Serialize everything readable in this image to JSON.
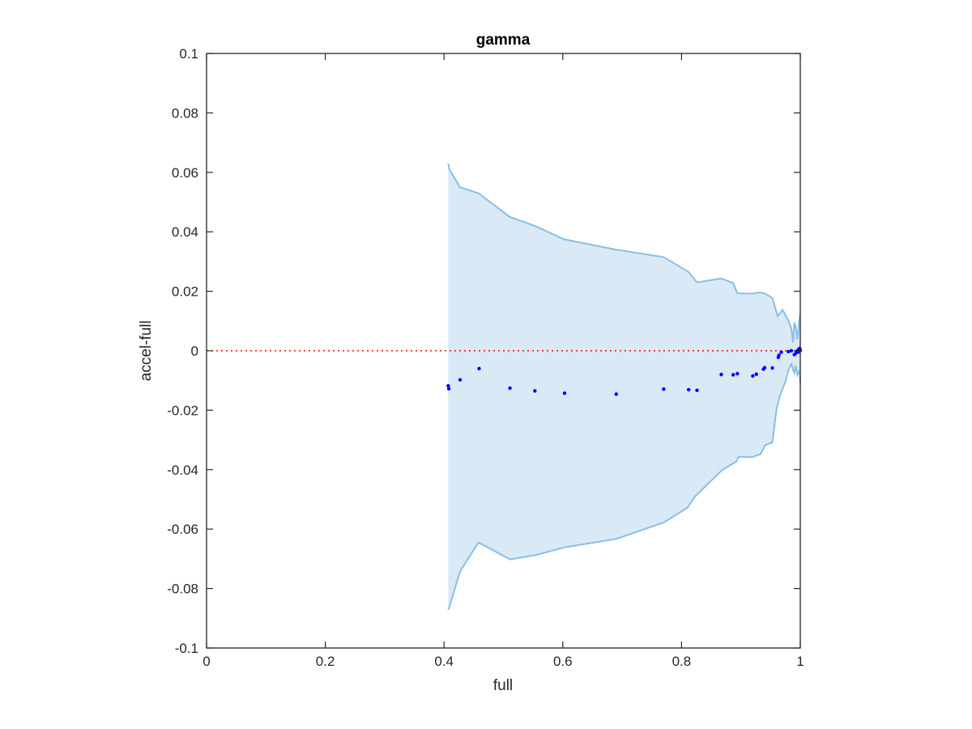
{
  "chart_data": {
    "type": "scatter",
    "title": "gamma",
    "xlabel": "full",
    "ylabel": "accel-full",
    "xlim": [
      0,
      1
    ],
    "ylim": [
      -0.1,
      0.1
    ],
    "xticks": [
      0,
      0.2,
      0.4,
      0.6,
      0.8,
      1
    ],
    "xtick_labels": [
      "0",
      "0.2",
      "0.4",
      "0.6",
      "0.8",
      "1"
    ],
    "yticks": [
      -0.1,
      -0.08,
      -0.06,
      -0.04,
      -0.02,
      0,
      0.02,
      0.04,
      0.06,
      0.08,
      0.1
    ],
    "ytick_labels": [
      "-0.1",
      "-0.08",
      "-0.06",
      "-0.04",
      "-0.02",
      "0",
      "0.02",
      "0.04",
      "0.06",
      "0.08",
      "0.1"
    ],
    "grid": false,
    "reference_line": {
      "y": 0,
      "color": "#ff0000",
      "style": "dotted"
    },
    "band": {
      "fill_color": "#d9e9f5",
      "edge_color": "#88c0e4",
      "upper": [
        [
          0.407,
          0.063
        ],
        [
          0.409,
          0.061
        ],
        [
          0.427,
          0.055
        ],
        [
          0.458,
          0.053
        ],
        [
          0.511,
          0.045
        ],
        [
          0.553,
          0.042
        ],
        [
          0.602,
          0.0375
        ],
        [
          0.69,
          0.034
        ],
        [
          0.77,
          0.0315
        ],
        [
          0.812,
          0.0265
        ],
        [
          0.826,
          0.023
        ],
        [
          0.867,
          0.0243
        ],
        [
          0.887,
          0.0228
        ],
        [
          0.894,
          0.0193
        ],
        [
          0.92,
          0.0192
        ],
        [
          0.93,
          0.0196
        ],
        [
          0.94,
          0.0193
        ],
        [
          0.953,
          0.0178
        ],
        [
          0.962,
          0.0116
        ],
        [
          0.97,
          0.0138
        ],
        [
          0.98,
          0.0102
        ],
        [
          0.985,
          0.0075
        ],
        [
          0.988,
          0.0028
        ],
        [
          0.99,
          0.0095
        ],
        [
          0.992,
          0.0085
        ],
        [
          0.995,
          0.0038
        ],
        [
          0.997,
          0.0075
        ],
        [
          0.999,
          0.0112
        ],
        [
          1.0,
          0.0125
        ]
      ],
      "lower": [
        [
          1.0,
          -0.011
        ],
        [
          0.999,
          -0.0065
        ],
        [
          0.995,
          -0.0082
        ],
        [
          0.992,
          -0.005
        ],
        [
          0.99,
          -0.0075
        ],
        [
          0.988,
          -0.0065
        ],
        [
          0.985,
          -0.0045
        ],
        [
          0.98,
          -0.0065
        ],
        [
          0.975,
          -0.0105
        ],
        [
          0.97,
          -0.0128
        ],
        [
          0.966,
          -0.0148
        ],
        [
          0.96,
          -0.0198
        ],
        [
          0.953,
          -0.0308
        ],
        [
          0.941,
          -0.0318
        ],
        [
          0.933,
          -0.0348
        ],
        [
          0.919,
          -0.0358
        ],
        [
          0.896,
          -0.0357
        ],
        [
          0.892,
          -0.0373
        ],
        [
          0.868,
          -0.0402
        ],
        [
          0.822,
          -0.0492
        ],
        [
          0.81,
          -0.0528
        ],
        [
          0.77,
          -0.0578
        ],
        [
          0.69,
          -0.0633
        ],
        [
          0.602,
          -0.0662
        ],
        [
          0.553,
          -0.0688
        ],
        [
          0.511,
          -0.0702
        ],
        [
          0.458,
          -0.0645
        ],
        [
          0.427,
          -0.0742
        ],
        [
          0.409,
          -0.0862
        ],
        [
          0.407,
          -0.0872
        ]
      ]
    },
    "series": [
      {
        "color": "#0000ff",
        "points": [
          [
            0.407,
            -0.0118
          ],
          [
            0.408,
            -0.0128
          ],
          [
            0.427,
            -0.0098
          ],
          [
            0.459,
            -0.006
          ],
          [
            0.511,
            -0.0126
          ],
          [
            0.553,
            -0.0135
          ],
          [
            0.603,
            -0.0143
          ],
          [
            0.69,
            -0.0146
          ],
          [
            0.77,
            -0.0129
          ],
          [
            0.812,
            -0.0131
          ],
          [
            0.826,
            -0.0133
          ],
          [
            0.867,
            -0.008
          ],
          [
            0.887,
            -0.0081
          ],
          [
            0.894,
            -0.0077
          ],
          [
            0.92,
            -0.0085
          ],
          [
            0.926,
            -0.0079
          ],
          [
            0.938,
            -0.0062
          ],
          [
            0.94,
            -0.0057
          ],
          [
            0.953,
            -0.0058
          ],
          [
            0.963,
            -0.0022
          ],
          [
            0.964,
            -0.0015
          ],
          [
            0.968,
            -0.0005
          ],
          [
            0.98,
            -0.0003
          ],
          [
            0.985,
            0.0
          ],
          [
            0.99,
            -0.0013
          ],
          [
            0.993,
            -0.0007
          ],
          [
            0.996,
            0.0002
          ],
          [
            0.997,
            -0.0004
          ],
          [
            0.998,
            0.0005
          ],
          [
            0.999,
            0.0008
          ],
          [
            1.0,
            0.0001
          ]
        ]
      }
    ]
  }
}
